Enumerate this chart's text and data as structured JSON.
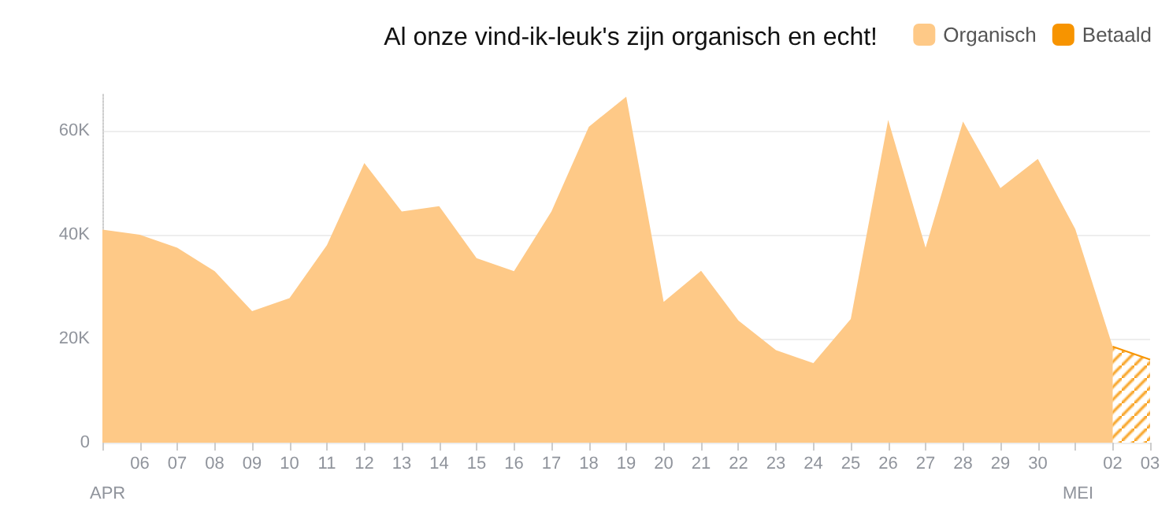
{
  "chart_data": {
    "type": "area",
    "title": "Al onze vind-ik-leuk's zijn organisch en echt!",
    "categories": [
      null,
      "06",
      "07",
      "08",
      "09",
      "10",
      "11",
      "12",
      "13",
      "14",
      "15",
      "16",
      "17",
      "18",
      "19",
      "20",
      "21",
      "22",
      "23",
      "24",
      "25",
      "26",
      "27",
      "28",
      "29",
      "30",
      null,
      "02",
      "03"
    ],
    "series": [
      {
        "name": "Organisch",
        "color": "#fec987",
        "values": [
          41000,
          40000,
          37500,
          33000,
          25300,
          27800,
          38000,
          53800,
          44500,
          45500,
          35500,
          33000,
          44500,
          60800,
          66600,
          27100,
          33100,
          23500,
          17800,
          15300,
          23800,
          62100,
          37500,
          61800,
          49000,
          54600,
          41100,
          18500,
          null
        ]
      },
      {
        "name": "Betaald",
        "color": "#f79400",
        "values": [
          null,
          null,
          null,
          null,
          null,
          null,
          null,
          null,
          null,
          null,
          null,
          null,
          null,
          null,
          null,
          null,
          null,
          null,
          null,
          null,
          null,
          null,
          null,
          null,
          null,
          null,
          null,
          18500,
          16000
        ]
      }
    ],
    "annotations": [
      "APR",
      "MEI"
    ],
    "ylim": [
      0,
      67000
    ],
    "yticks": [
      0,
      {
        "value": 20000,
        "label": "20K"
      },
      {
        "value": 40000,
        "label": "40K"
      },
      {
        "value": 60000,
        "label": "60K"
      }
    ],
    "grid": "y",
    "legend": "top right",
    "marker": "none"
  }
}
